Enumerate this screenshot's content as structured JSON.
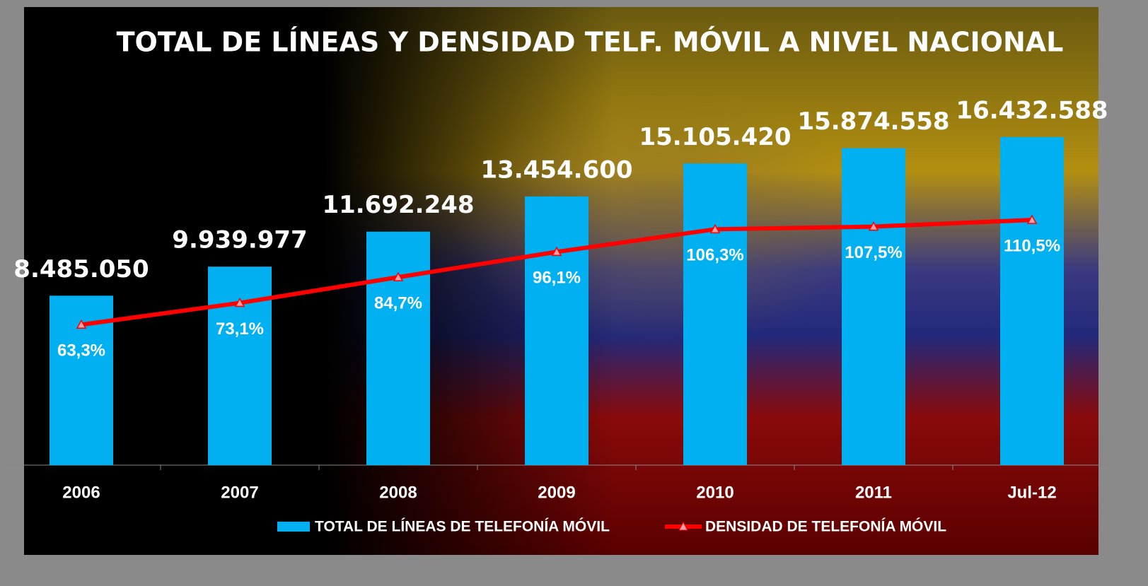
{
  "chart_data": {
    "type": "bar-line",
    "title": "TOTAL DE LÍNEAS Y DENSIDAD TELF. MÓVIL A NIVEL NACIONAL",
    "categories": [
      "2006",
      "2007",
      "2008",
      "2009",
      "2010",
      "2011",
      "Jul-12"
    ],
    "series": [
      {
        "name": "TOTAL DE LÍNEAS DE TELEFONÍA MÓVIL",
        "type": "bar",
        "color": "#00b0f0",
        "values": [
          8485050,
          9939977,
          11692248,
          13454600,
          15105420,
          15874558,
          16432588
        ],
        "value_labels": [
          "8.485.050",
          "9.939.977",
          "11.692.248",
          "13.454.600",
          "15.105.420",
          "15.874.558",
          "16.432.588"
        ]
      },
      {
        "name": "DENSIDAD DE TELEFONÍA MÓVIL",
        "type": "line",
        "axis": "y2",
        "color": "#ff0000",
        "values": [
          63.3,
          73.1,
          84.7,
          96.1,
          106.3,
          107.5,
          110.5
        ],
        "value_labels": [
          "63,3%",
          "73,1%",
          "84,7%",
          "96,1%",
          "106,3%",
          "107,5%",
          "110,5%"
        ]
      }
    ],
    "ylim": [
      0,
      20000000
    ],
    "y2lim": [
      0,
      180
    ],
    "legend": "bottom"
  }
}
